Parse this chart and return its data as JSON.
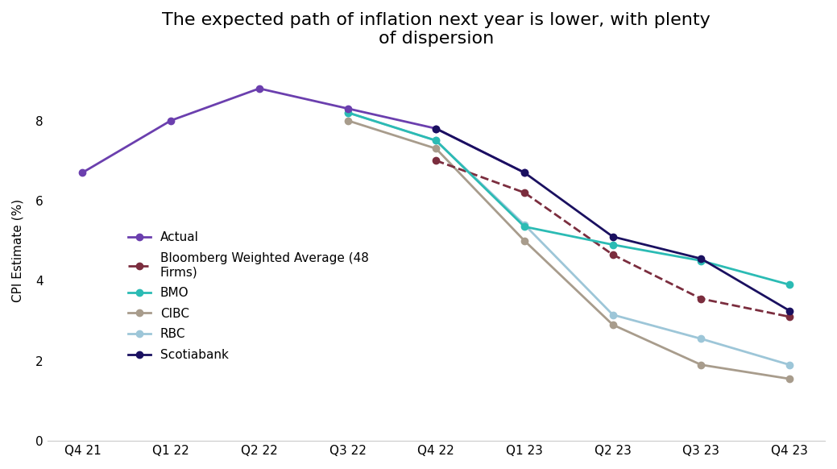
{
  "title": "The expected path of inflation next year is lower, with plenty\nof dispersion",
  "ylabel": "CPI Estimate (%)",
  "x_labels": [
    "Q4 21",
    "Q1 22",
    "Q2 22",
    "Q3 22",
    "Q4 22",
    "Q1 23",
    "Q2 23",
    "Q3 23",
    "Q4 23"
  ],
  "series": {
    "Actual": {
      "values": [
        6.7,
        8.0,
        8.8,
        8.3,
        7.8,
        6.7,
        null,
        null,
        null
      ],
      "color": "#6B3FAE",
      "linestyle": "solid",
      "linewidth": 2.0,
      "marker": "o",
      "markersize": 6,
      "zorder": 5
    },
    "Bloomberg Weighted Average (48\nFirms)": {
      "values": [
        null,
        null,
        null,
        null,
        7.0,
        6.2,
        4.65,
        3.55,
        3.1
      ],
      "color": "#7B2D3E",
      "linestyle": "dashed",
      "linewidth": 2.0,
      "marker": "o",
      "markersize": 6,
      "zorder": 4
    },
    "BMO": {
      "values": [
        null,
        null,
        null,
        8.2,
        7.5,
        5.35,
        4.9,
        4.5,
        3.9
      ],
      "color": "#2BBBB4",
      "linestyle": "solid",
      "linewidth": 2.0,
      "marker": "o",
      "markersize": 6,
      "zorder": 4
    },
    "CIBC": {
      "values": [
        null,
        null,
        null,
        8.0,
        7.3,
        5.0,
        2.9,
        1.9,
        1.55
      ],
      "color": "#A89C8C",
      "linestyle": "solid",
      "linewidth": 2.0,
      "marker": "o",
      "markersize": 6,
      "zorder": 3
    },
    "RBC": {
      "values": [
        null,
        null,
        null,
        8.2,
        7.5,
        5.4,
        3.15,
        2.55,
        1.9
      ],
      "color": "#9DC6D8",
      "linestyle": "solid",
      "linewidth": 2.0,
      "marker": "o",
      "markersize": 6,
      "zorder": 3
    },
    "Scotiabank": {
      "values": [
        null,
        null,
        null,
        null,
        7.8,
        6.7,
        5.1,
        4.55,
        3.25
      ],
      "color": "#1A1060",
      "linestyle": "solid",
      "linewidth": 2.0,
      "marker": "o",
      "markersize": 6,
      "zorder": 5
    }
  },
  "ylim": [
    0,
    9.5
  ],
  "yticks": [
    0,
    2,
    4,
    6,
    8
  ],
  "background_color": "#FFFFFF",
  "title_fontsize": 16,
  "label_fontsize": 11,
  "legend_fontsize": 11
}
